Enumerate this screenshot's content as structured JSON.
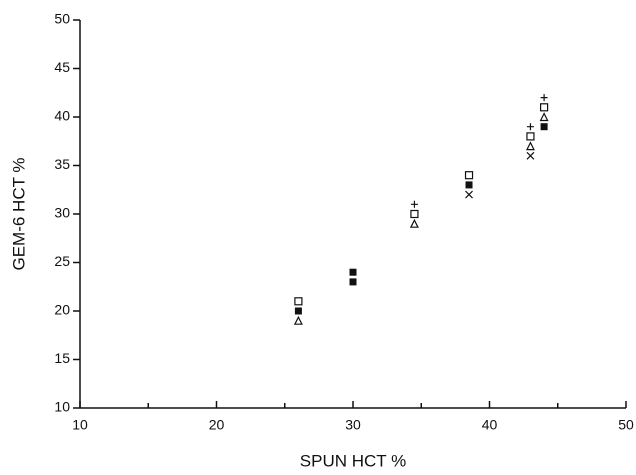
{
  "chart_data": {
    "type": "scatter",
    "xlabel": "SPUN HCT %",
    "ylabel": "GEM-6 HCT %",
    "xlim": [
      10,
      50
    ],
    "xticks": [
      10,
      20,
      30,
      40,
      50
    ],
    "xminor": [
      15,
      25,
      35,
      45
    ],
    "ylim": [
      10,
      50
    ],
    "yticks": [
      10,
      15,
      20,
      25,
      30,
      35,
      40,
      45,
      50
    ],
    "series": [
      {
        "marker": "open-square",
        "color": "#111111",
        "x": [
          26,
          34.5,
          38.5,
          43,
          44
        ],
        "y": [
          21,
          30,
          34,
          38,
          41
        ]
      },
      {
        "marker": "filled-square",
        "color": "#111111",
        "x": [
          26,
          30,
          30,
          38.5,
          44
        ],
        "y": [
          20,
          24,
          23,
          33,
          39
        ]
      },
      {
        "marker": "triangle",
        "color": "#111111",
        "x": [
          26,
          34.5,
          43,
          44
        ],
        "y": [
          19,
          29,
          37,
          40
        ]
      },
      {
        "marker": "plus",
        "color": "#111111",
        "x": [
          34.5,
          43,
          44
        ],
        "y": [
          31,
          39,
          42
        ]
      },
      {
        "marker": "cross",
        "color": "#111111",
        "x": [
          38.5,
          43
        ],
        "y": [
          32,
          36
        ]
      }
    ]
  }
}
